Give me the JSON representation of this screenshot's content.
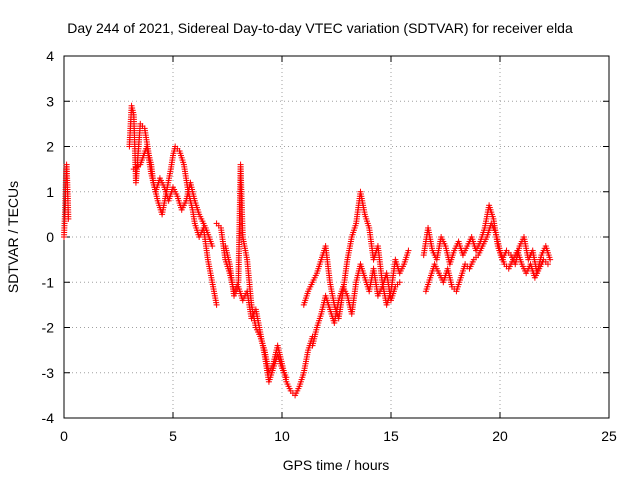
{
  "chart_data": {
    "type": "scatter",
    "title": "Day 244 of 2021, Sidereal Day-to-day VTEC variation (SDTVAR) for receiver elda",
    "xlabel": "GPS time / hours",
    "ylabel": "SDTVAR / TECUs",
    "xlim": [
      0,
      25
    ],
    "ylim": [
      -4,
      4
    ],
    "xticks": [
      0,
      5,
      10,
      15,
      20,
      25
    ],
    "yticks": [
      -4,
      -3,
      -2,
      -1,
      0,
      1,
      2,
      3,
      4
    ],
    "xtick_labels": [
      "0",
      "5",
      "10",
      "15",
      "20",
      "25"
    ],
    "ytick_labels": [
      "-4",
      "-3",
      "-2",
      "-1",
      "0",
      "1",
      "2",
      "3",
      "4"
    ],
    "grid": true,
    "marker": "plus",
    "color": "#ff0000",
    "series": [
      {
        "name": "elda",
        "segments": [
          {
            "x": [
              0.0,
              0.05,
              0.1,
              0.12,
              0.15,
              0.18,
              0.2
            ],
            "y": [
              0.0,
              0.6,
              1.5,
              1.6,
              1.2,
              0.8,
              0.4
            ]
          },
          {
            "x": [
              3.0,
              3.1,
              3.2,
              3.3,
              3.5,
              3.7,
              3.9,
              4.0,
              4.1,
              4.3,
              4.5,
              4.7,
              4.9,
              5.0,
              5.1,
              5.3,
              5.5,
              5.7,
              5.9,
              6.0,
              6.2,
              6.4,
              6.6,
              6.8,
              7.0
            ],
            "y": [
              2.0,
              2.9,
              2.7,
              1.2,
              2.5,
              2.4,
              1.8,
              1.6,
              1.2,
              0.8,
              0.5,
              1.0,
              1.5,
              1.8,
              2.0,
              1.9,
              1.6,
              1.0,
              0.6,
              0.3,
              0.0,
              0.2,
              -0.5,
              -1.0,
              -1.5
            ]
          },
          {
            "x": [
              3.2,
              3.5,
              3.8,
              4.0,
              4.2,
              4.4,
              4.6,
              4.8,
              5.0,
              5.2,
              5.4,
              5.6,
              5.8,
              6.0,
              6.2,
              6.5,
              6.8
            ],
            "y": [
              1.5,
              1.6,
              2.0,
              1.4,
              1.0,
              1.3,
              1.1,
              0.8,
              1.1,
              0.9,
              0.6,
              0.8,
              1.2,
              0.8,
              0.5,
              0.2,
              -0.2
            ]
          },
          {
            "x": [
              7.0,
              7.2,
              7.4,
              7.6,
              7.8,
              8.0,
              8.1,
              8.2,
              8.4,
              8.6,
              8.8,
              9.0,
              9.2,
              9.4,
              9.6,
              9.8,
              10.0,
              10.2,
              10.4,
              10.6,
              10.8,
              11.0,
              11.2,
              11.4
            ],
            "y": [
              0.3,
              0.2,
              -0.5,
              -0.8,
              -1.2,
              -1.0,
              1.6,
              0.0,
              -0.5,
              -1.5,
              -2.0,
              -2.2,
              -2.5,
              -3.0,
              -2.8,
              -2.4,
              -2.8,
              -3.2,
              -3.4,
              -3.5,
              -3.3,
              -3.0,
              -2.5,
              -2.2
            ]
          },
          {
            "x": [
              7.4,
              7.6,
              7.8,
              8.0,
              8.2,
              8.4,
              8.6,
              8.8,
              9.0,
              9.2,
              9.4,
              9.6,
              9.8,
              10.0,
              10.2
            ],
            "y": [
              -0.2,
              -0.6,
              -1.3,
              -1.1,
              -1.4,
              -1.2,
              -1.8,
              -1.6,
              -2.1,
              -2.6,
              -3.2,
              -2.9,
              -2.6,
              -2.9,
              -3.1
            ]
          },
          {
            "x": [
              11.0,
              11.2,
              11.4,
              11.6,
              11.8,
              12.0,
              12.2,
              12.4,
              12.6,
              12.8,
              13.0,
              13.2,
              13.4,
              13.6,
              13.8,
              14.0,
              14.2,
              14.4,
              14.6,
              14.8,
              15.0,
              15.2,
              15.4,
              15.6,
              15.8
            ],
            "y": [
              -1.5,
              -1.2,
              -1.0,
              -0.8,
              -0.5,
              -0.2,
              -1.0,
              -1.5,
              -1.8,
              -1.2,
              -0.5,
              0.0,
              0.3,
              1.0,
              0.5,
              0.2,
              -0.5,
              -0.2,
              -1.0,
              -1.5,
              -1.2,
              -0.5,
              -0.8,
              -0.6,
              -0.3
            ]
          },
          {
            "x": [
              11.4,
              11.6,
              11.8,
              12.0,
              12.2,
              12.4,
              12.6,
              12.8,
              13.0,
              13.2,
              13.4,
              13.6,
              13.8,
              14.0,
              14.2,
              14.4,
              14.6,
              14.8,
              15.0,
              15.2,
              15.4
            ],
            "y": [
              -2.4,
              -2.0,
              -1.7,
              -1.3,
              -1.6,
              -1.9,
              -1.4,
              -1.1,
              -1.3,
              -1.7,
              -1.0,
              -0.6,
              -0.9,
              -1.2,
              -0.7,
              -1.3,
              -1.1,
              -0.8,
              -1.4,
              -1.1,
              -1.0
            ]
          },
          {
            "x": [
              16.5,
              16.7,
              16.9,
              17.1,
              17.3,
              17.5,
              17.7,
              17.9,
              18.1,
              18.3,
              18.5,
              18.7,
              18.9,
              19.1,
              19.3,
              19.5,
              19.7,
              19.9,
              20.1,
              20.3,
              20.5,
              20.7,
              20.9,
              21.1,
              21.3,
              21.5,
              21.7,
              21.9,
              22.1,
              22.3
            ],
            "y": [
              -0.4,
              0.2,
              -0.3,
              -0.5,
              0.0,
              -0.2,
              -0.6,
              -0.3,
              -0.1,
              -0.4,
              -0.2,
              0.0,
              -0.3,
              -0.1,
              0.2,
              0.7,
              0.4,
              -0.2,
              -0.5,
              -0.3,
              -0.4,
              -0.6,
              -0.2,
              0.0,
              -0.5,
              -0.3,
              -0.8,
              -0.4,
              -0.2,
              -0.5
            ]
          },
          {
            "x": [
              16.6,
              16.8,
              17.0,
              17.2,
              17.4,
              17.6,
              17.8,
              18.0,
              18.2,
              18.4,
              18.6,
              18.8,
              19.0,
              19.2,
              19.4,
              19.6,
              19.8,
              20.0,
              20.2,
              20.4,
              20.6,
              20.8,
              21.0,
              21.2,
              21.4,
              21.6,
              21.8,
              22.0,
              22.2
            ],
            "y": [
              -1.2,
              -0.9,
              -0.6,
              -0.8,
              -1.0,
              -0.7,
              -1.1,
              -1.2,
              -0.9,
              -0.6,
              -0.7,
              -0.5,
              -0.4,
              -0.2,
              0.0,
              0.3,
              0.1,
              -0.3,
              -0.6,
              -0.7,
              -0.5,
              -0.3,
              -0.6,
              -0.8,
              -0.6,
              -0.9,
              -0.7,
              -0.5,
              -0.6
            ]
          }
        ]
      }
    ]
  }
}
